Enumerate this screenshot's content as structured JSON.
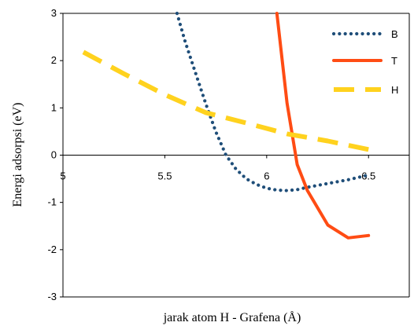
{
  "chart_data": {
    "type": "line",
    "title": "",
    "xlabel": "jarak  atom H - Grafena (Å)",
    "ylabel": "Energi  adsorpsi (eV)",
    "xlim": [
      5,
      6.7
    ],
    "ylim": [
      -3,
      3
    ],
    "x_ticks": [
      5,
      5.5,
      6,
      6.5
    ],
    "x_tick_labels": [
      "5",
      "5.5",
      "6",
      "6.5"
    ],
    "y_ticks": [
      3,
      2,
      1,
      0,
      -1,
      -2,
      -3
    ],
    "y_tick_labels": [
      "3",
      "2",
      "1",
      "0",
      "-1",
      "-2",
      "-3"
    ],
    "grid": false,
    "legend_position": "top-right",
    "series": [
      {
        "name": "B",
        "color": "#1f4e79",
        "style": "dotted",
        "x": [
          5.56,
          5.6,
          5.65,
          5.7,
          5.75,
          5.8,
          5.85,
          5.9,
          5.95,
          6.0,
          6.05,
          6.1,
          6.15,
          6.2,
          6.3,
          6.4,
          6.5
        ],
        "y": [
          3.0,
          2.4,
          1.75,
          1.1,
          0.5,
          0.0,
          -0.3,
          -0.5,
          -0.62,
          -0.7,
          -0.74,
          -0.75,
          -0.73,
          -0.68,
          -0.6,
          -0.52,
          -0.42
        ]
      },
      {
        "name": "T",
        "color": "#ff4c14",
        "style": "solid",
        "x": [
          6.05,
          6.1,
          6.15,
          6.2,
          6.3,
          6.4,
          6.5
        ],
        "y": [
          3.0,
          1.1,
          -0.2,
          -0.75,
          -1.48,
          -1.75,
          -1.7
        ]
      },
      {
        "name": "H",
        "color": "#ffd21e",
        "style": "dashed",
        "x": [
          5.1,
          5.3,
          5.5,
          5.7,
          5.9,
          6.1,
          6.3,
          6.5
        ],
        "y": [
          2.18,
          1.72,
          1.28,
          0.9,
          0.68,
          0.45,
          0.3,
          0.12
        ]
      }
    ]
  }
}
